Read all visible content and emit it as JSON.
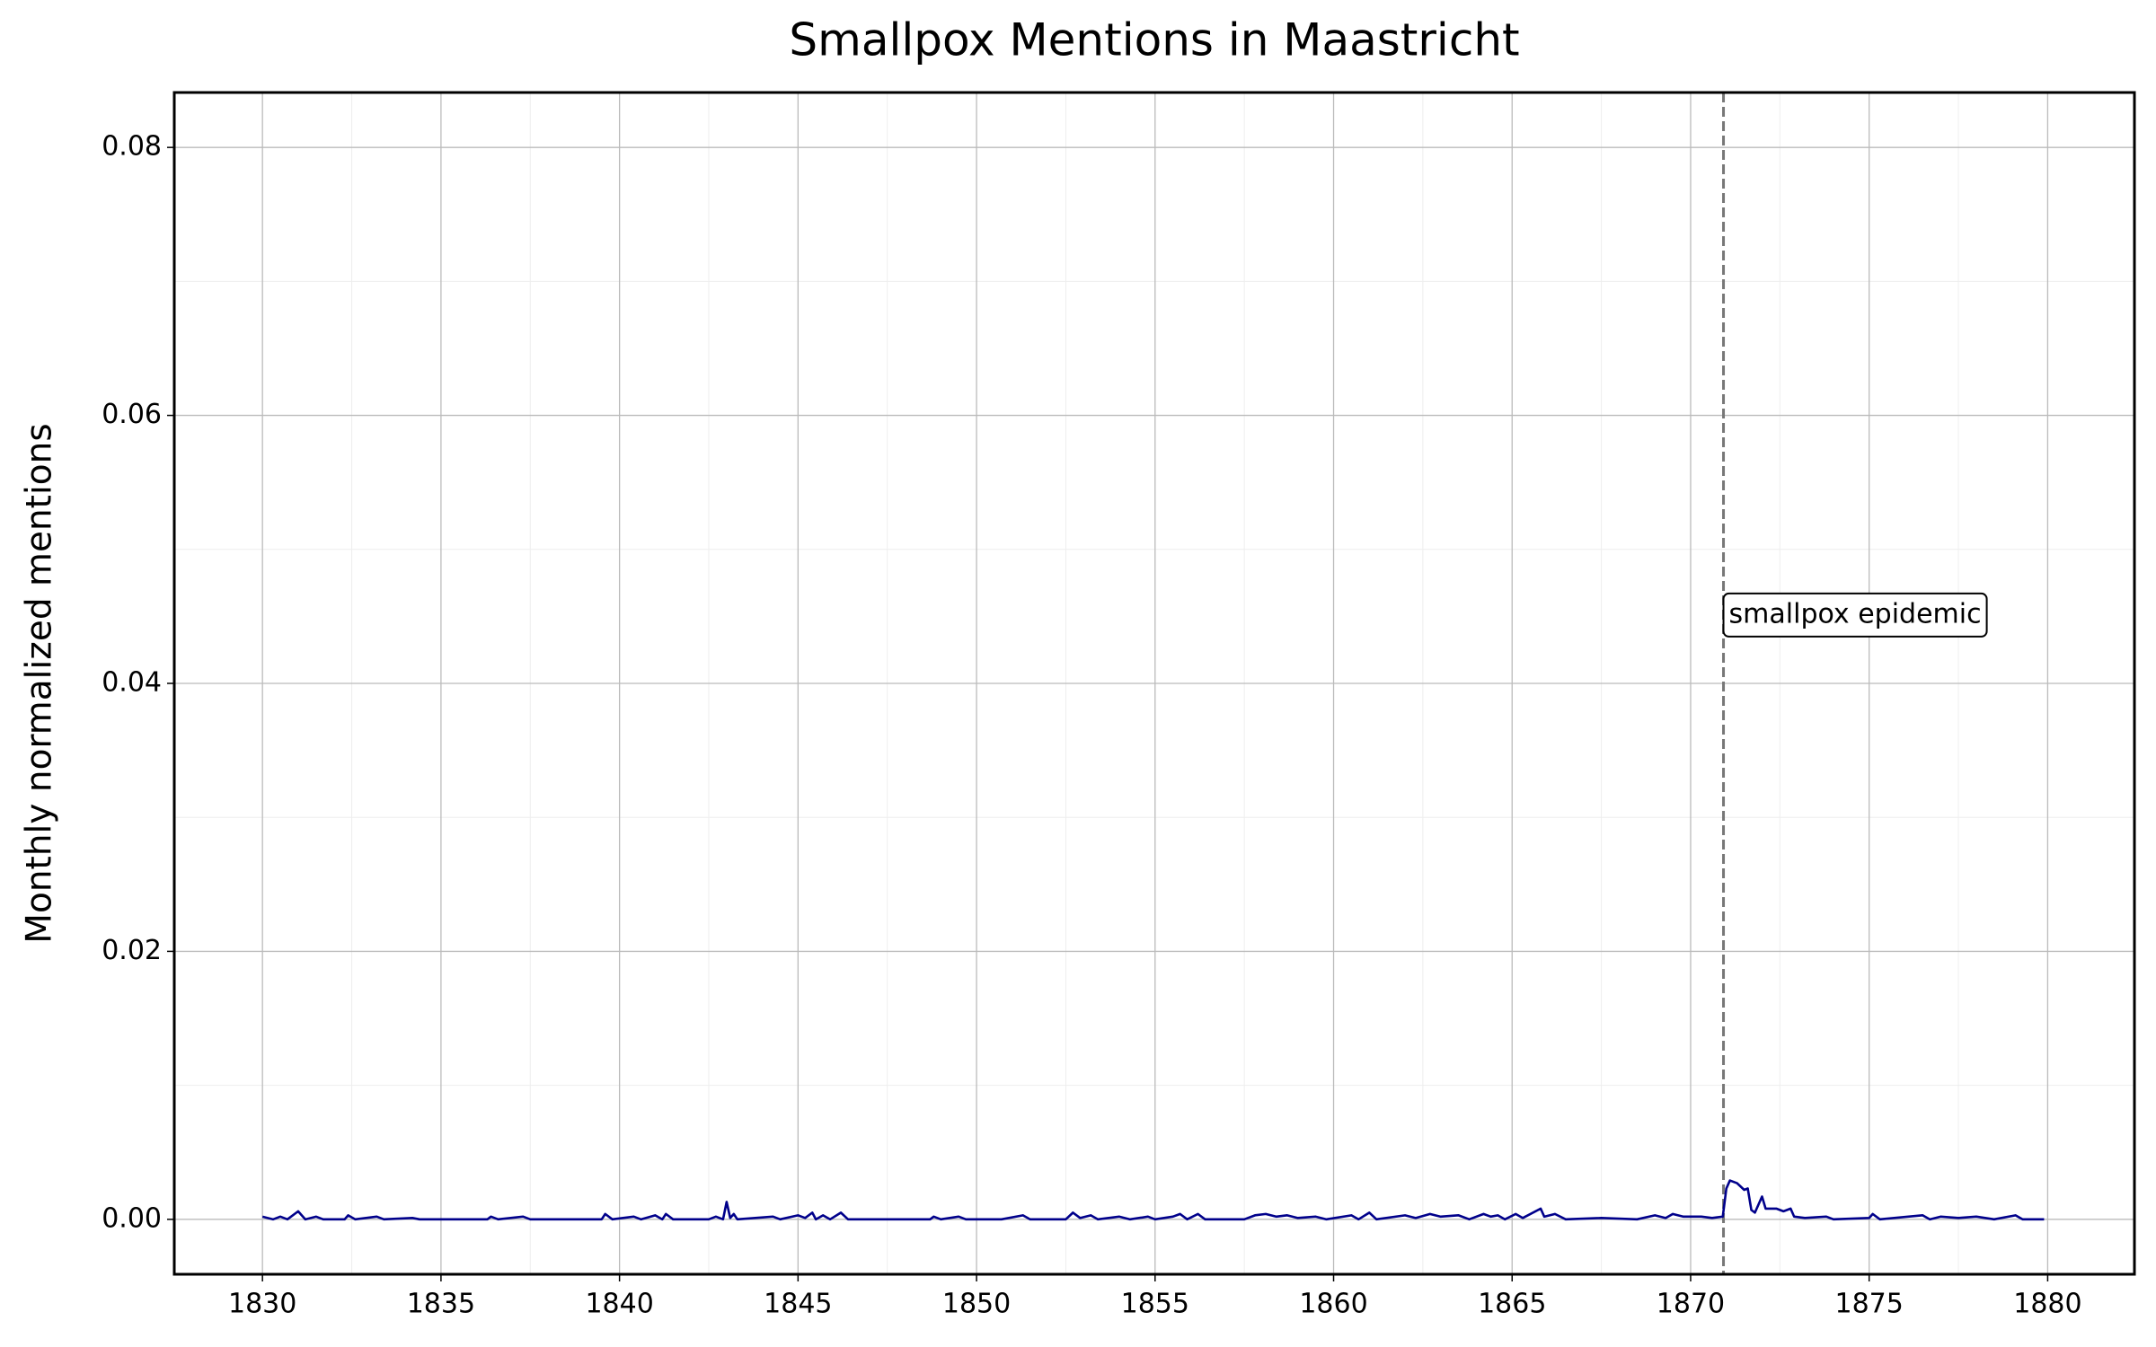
{
  "chart_data": {
    "type": "line",
    "title": "Smallpox Mentions in Maastricht",
    "ylabel": "Monthly normalized mentions",
    "xlim": [
      1827.53,
      1882.43
    ],
    "ylim": [
      -0.0041,
      0.0841
    ],
    "xticks": [
      1830,
      1835,
      1840,
      1845,
      1850,
      1855,
      1860,
      1865,
      1870,
      1875,
      1880
    ],
    "yticks": [
      {
        "value": 0,
        "label": "0.00"
      },
      {
        "value": 0.02,
        "label": "0.02"
      },
      {
        "value": 0.04,
        "label": "0.04"
      },
      {
        "value": 0.06,
        "label": "0.06"
      },
      {
        "value": 0.08,
        "label": "0.08"
      }
    ],
    "xminorticks": [
      1832.5,
      1837.5,
      1842.5,
      1847.5,
      1852.5,
      1857.5,
      1862.5,
      1867.5,
      1872.5,
      1877.5
    ],
    "yminorticks": [
      0.01,
      0.03,
      0.05,
      0.07
    ],
    "grid": true,
    "vline": {
      "x": 1870.92,
      "color": "#777777"
    },
    "annotation": {
      "text": "smallpox epidemic",
      "x": 1870.92,
      "y": 0.0451
    },
    "series": [
      {
        "color": "#00008b",
        "x": [
          1830.0,
          1830.3,
          1830.5,
          1830.7,
          1831.0,
          1831.2,
          1831.5,
          1831.7,
          1832.3,
          1832.4,
          1832.6,
          1833.2,
          1833.4,
          1834.2,
          1834.4,
          1836.3,
          1836.4,
          1836.6,
          1837.3,
          1837.5,
          1839.5,
          1839.6,
          1839.8,
          1840.4,
          1840.6,
          1841.0,
          1841.2,
          1841.3,
          1841.5,
          1842.5,
          1842.7,
          1842.9,
          1843.0,
          1843.1,
          1843.2,
          1843.3,
          1844.3,
          1844.5,
          1845.0,
          1845.2,
          1845.4,
          1845.5,
          1845.7,
          1845.9,
          1846.2,
          1846.4,
          1848.7,
          1848.8,
          1849.0,
          1849.5,
          1849.7,
          1850.7,
          1851.3,
          1851.5,
          1852.5,
          1852.7,
          1852.9,
          1853.2,
          1853.4,
          1854.0,
          1854.3,
          1854.8,
          1855.0,
          1855.5,
          1855.7,
          1855.9,
          1856.2,
          1856.4,
          1857.5,
          1857.8,
          1858.1,
          1858.4,
          1858.7,
          1859.0,
          1859.5,
          1859.8,
          1860.5,
          1860.7,
          1861.0,
          1861.2,
          1862.0,
          1862.3,
          1862.7,
          1863.0,
          1863.5,
          1863.8,
          1864.2,
          1864.4,
          1864.6,
          1864.8,
          1865.1,
          1865.3,
          1865.8,
          1865.9,
          1866.2,
          1866.5,
          1867.5,
          1868.5,
          1869.0,
          1869.3,
          1869.5,
          1869.8,
          1870.3,
          1870.6,
          1870.9,
          1871.0,
          1871.1,
          1871.3,
          1871.5,
          1871.6,
          1871.7,
          1871.8,
          1872.0,
          1872.1,
          1872.4,
          1872.6,
          1872.8,
          1872.9,
          1873.2,
          1873.8,
          1874.0,
          1875.0,
          1875.1,
          1875.3,
          1876.5,
          1876.7,
          1877.0,
          1877.5,
          1878.0,
          1878.5,
          1879.1,
          1879.3,
          1879.9
        ],
        "values": [
          0.0002,
          0,
          0.0002,
          0,
          0.0006,
          0,
          0.0002,
          0,
          0,
          0.0003,
          0,
          0.0002,
          0,
          0.0001,
          0,
          0,
          0.0002,
          0,
          0.0002,
          0,
          0,
          0.0004,
          0,
          0.0002,
          0,
          0.0003,
          0,
          0.0004,
          0,
          0,
          0.0002,
          0,
          0.0013,
          0.0001,
          0.0004,
          0,
          0.0002,
          0,
          0.0003,
          0.0001,
          0.0005,
          0,
          0.0003,
          0,
          0.0005,
          0,
          0,
          0.0002,
          0,
          0.0002,
          0,
          0,
          0.0003,
          0,
          0,
          0.0005,
          0.0001,
          0.0003,
          0,
          0.0002,
          0,
          0.0002,
          0,
          0.0002,
          0.0004,
          0,
          0.0004,
          0,
          0,
          0.0003,
          0.0004,
          0.0002,
          0.0003,
          0.0001,
          0.0002,
          0,
          0.0003,
          0,
          0.0005,
          0,
          0.0003,
          0.0001,
          0.0004,
          0.0002,
          0.0003,
          0,
          0.0004,
          0.0002,
          0.0003,
          0,
          0.0004,
          0.0001,
          0.0008,
          0.0002,
          0.0004,
          0,
          0.0001,
          0,
          0.0003,
          0.0001,
          0.0004,
          0.0002,
          0.0002,
          0.0001,
          0.0002,
          0.0023,
          0.0029,
          0.0027,
          0.0022,
          0.0023,
          0.0007,
          0.0005,
          0.0017,
          0.0008,
          0.0008,
          0.0006,
          0.0008,
          0.0002,
          0.0001,
          0.0002,
          0,
          0.0001,
          0.0004,
          0,
          0.0003,
          0,
          0.0002,
          0.0001,
          0.0002,
          0,
          0.0003,
          0,
          0
        ]
      }
    ]
  }
}
